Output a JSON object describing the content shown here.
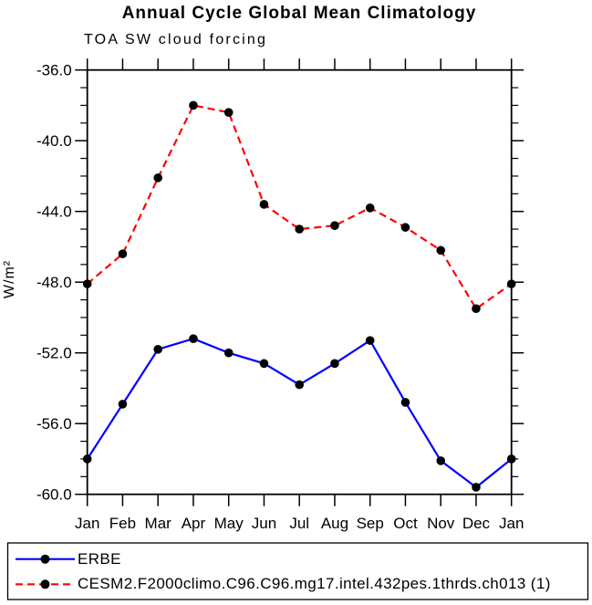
{
  "chart_data": {
    "type": "line",
    "title": "Annual Cycle Global Mean Climatology",
    "subtitle": "TOA SW cloud forcing",
    "ylabel": "W/m²",
    "xlabel": "",
    "categories": [
      "Jan",
      "Feb",
      "Mar",
      "Apr",
      "May",
      "Jun",
      "Jul",
      "Aug",
      "Sep",
      "Oct",
      "Nov",
      "Dec",
      "Jan"
    ],
    "series": [
      {
        "name": "ERBE",
        "color": "#0000ff",
        "line_style": "solid",
        "marker": "filled-circle",
        "marker_color": "#000000",
        "values": [
          -58.0,
          -54.9,
          -51.8,
          -51.2,
          -52.0,
          -52.6,
          -53.8,
          -52.6,
          -51.3,
          -54.8,
          -58.1,
          -59.6,
          -58.0
        ]
      },
      {
        "name": "CESM2.F2000climo.C96.C96.mg17.intel.432pes.1thrds.ch013 (1)",
        "color": "#ff0000",
        "line_style": "dashed",
        "marker": "filled-circle",
        "marker_color": "#000000",
        "values": [
          -48.1,
          -46.4,
          -42.1,
          -38.0,
          -38.4,
          -43.6,
          -45.0,
          -44.8,
          -43.8,
          -44.9,
          -46.2,
          -49.5,
          -48.1
        ]
      }
    ],
    "ylim": [
      -60,
      -36
    ],
    "ytick_major": [
      -36,
      -40,
      -44,
      -48,
      -52,
      -56,
      -60
    ],
    "ytick_labels": [
      "-36.0",
      "-40.0",
      "-44.0",
      "-48.0",
      "-52.0",
      "-56.0",
      "-60.0"
    ],
    "ytick_minor_step": 1,
    "grid": false,
    "legend_position": "bottom-box",
    "axis_color": "#000000",
    "text_color": "#000000"
  }
}
